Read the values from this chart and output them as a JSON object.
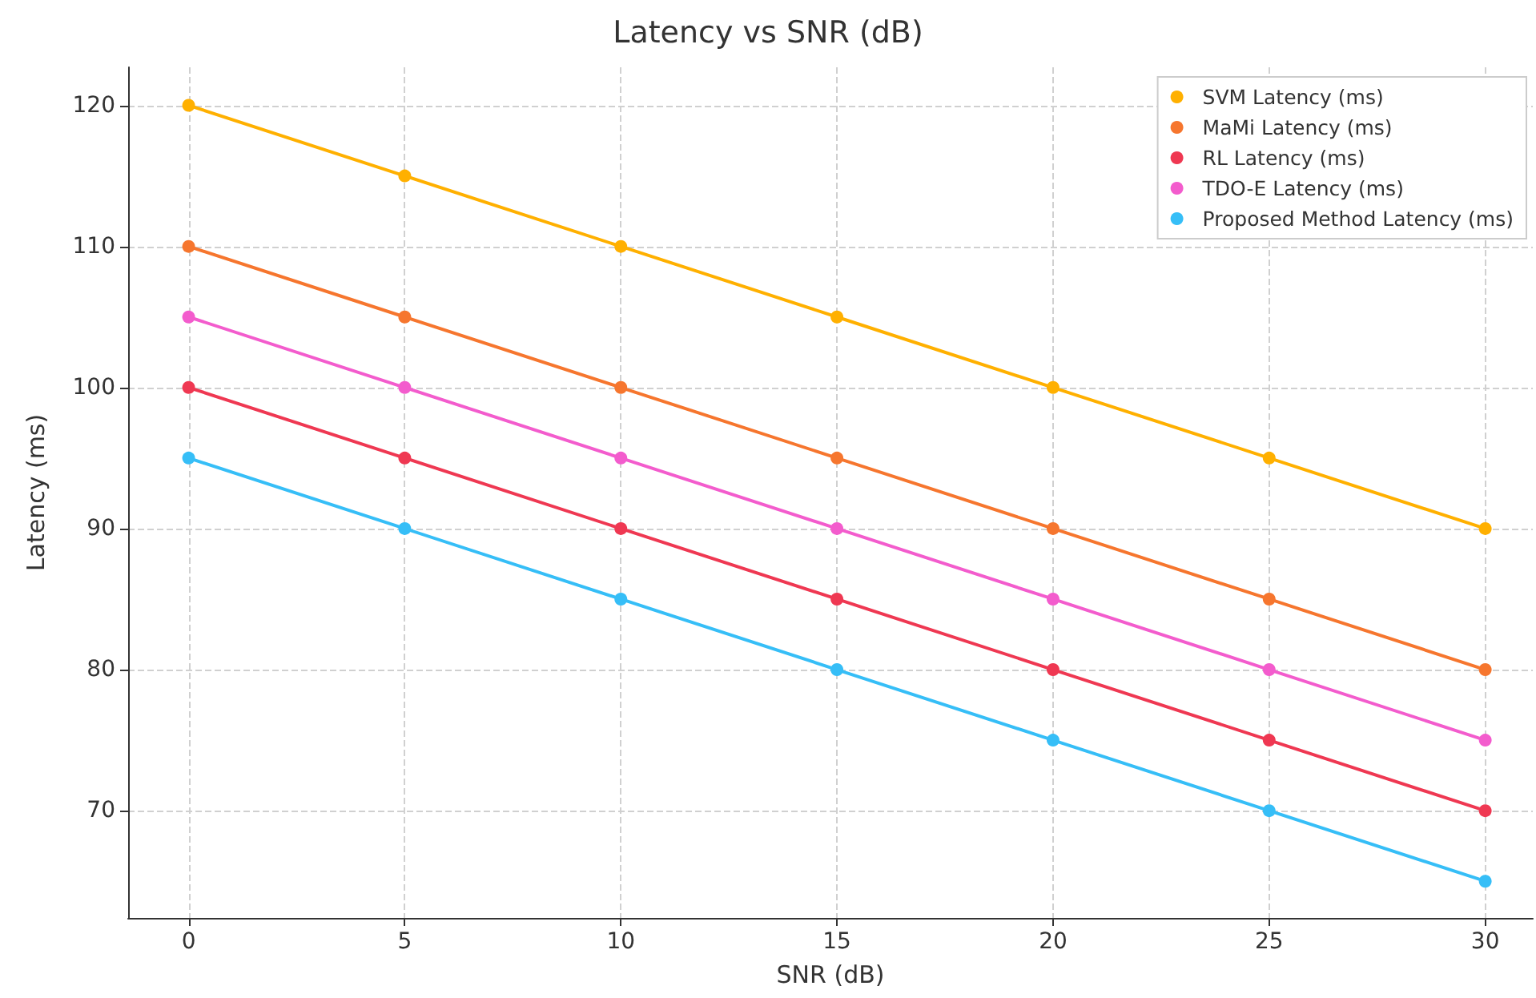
{
  "chart_data": {
    "type": "line",
    "title": "Latency vs SNR (dB)",
    "xlabel": "SNR (dB)",
    "ylabel": "Latency (ms)",
    "x": [
      0,
      5,
      10,
      15,
      20,
      25,
      30
    ],
    "series": [
      {
        "name": "SVM Latency (ms)",
        "color": "#ffb000",
        "values": [
          120,
          115,
          110,
          105,
          100,
          95,
          90
        ]
      },
      {
        "name": "MaMi Latency (ms)",
        "color": "#f6762e",
        "values": [
          110,
          105,
          100,
          95,
          90,
          85,
          80
        ]
      },
      {
        "name": "RL Latency (ms)",
        "color": "#ef3852",
        "values": [
          100,
          95,
          90,
          85,
          80,
          75,
          70
        ]
      },
      {
        "name": "TDO-E Latency (ms)",
        "color": "#f35ccd",
        "values": [
          105,
          100,
          95,
          90,
          85,
          80,
          75
        ]
      },
      {
        "name": "Proposed Method Latency (ms)",
        "color": "#36bef7",
        "values": [
          95,
          90,
          85,
          80,
          75,
          70,
          65
        ]
      }
    ],
    "xlim": [
      -1.4,
      31.1
    ],
    "ylim": [
      62.4,
      122.7
    ],
    "xticks": [
      0,
      5,
      10,
      15,
      20,
      25,
      30
    ],
    "yticks": [
      70,
      80,
      90,
      100,
      110,
      120
    ],
    "grid": true,
    "legend": "top right",
    "marker": "circle",
    "line_style": "solid"
  }
}
